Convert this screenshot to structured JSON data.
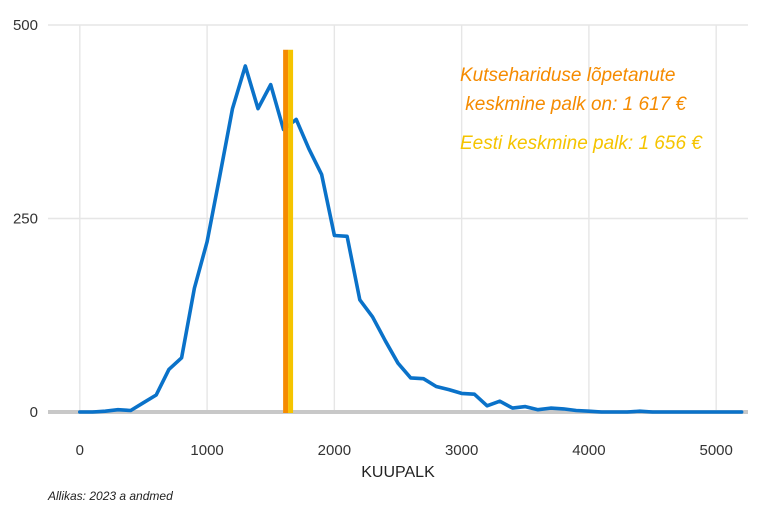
{
  "chart_data": {
    "type": "line",
    "xlabel": "KUUPALK",
    "ylabel": "",
    "xlim": [
      -250,
      5250
    ],
    "ylim": [
      0,
      500
    ],
    "x_ticks": [
      {
        "value": 0,
        "label": "0"
      },
      {
        "value": 1000,
        "label": "1000"
      },
      {
        "value": 2000,
        "label": "2000"
      },
      {
        "value": 3000,
        "label": "3000"
      },
      {
        "value": 4000,
        "label": "4000"
      },
      {
        "value": 5000,
        "label": "5000"
      }
    ],
    "y_ticks": [
      {
        "value": 0,
        "label": "0"
      },
      {
        "value": 250,
        "label": "250"
      },
      {
        "value": 500,
        "label": "500"
      }
    ],
    "grid": true,
    "series": [
      {
        "color": "#0a72c9",
        "x": [
          0,
          100,
          200,
          300,
          400,
          500,
          600,
          700,
          800,
          900,
          1000,
          1100,
          1200,
          1300,
          1400,
          1500,
          1600,
          1700,
          1800,
          1900,
          2000,
          2100,
          2200,
          2300,
          2400,
          2500,
          2600,
          2700,
          2800,
          2900,
          3000,
          3100,
          3200,
          3300,
          3400,
          3500,
          3600,
          3700,
          3800,
          3900,
          4000,
          4100,
          4200,
          4300,
          4400,
          4500,
          4600,
          4700,
          4800,
          4900,
          5000,
          5100,
          5200
        ],
        "y": [
          0,
          0,
          1,
          3,
          2,
          12,
          22,
          55,
          70,
          160,
          220,
          305,
          392,
          447,
          392,
          423,
          365,
          378,
          340,
          307,
          228,
          227,
          145,
          123,
          92,
          63,
          44,
          43,
          33,
          29,
          24,
          23,
          8,
          14,
          5,
          7,
          3,
          5,
          4,
          2,
          1,
          0,
          0,
          0,
          1,
          0,
          0,
          0,
          0,
          0,
          0,
          0,
          0
        ]
      }
    ],
    "reference_lines": [
      {
        "x": 1617,
        "color": "#f58b00"
      },
      {
        "x": 1656,
        "color": "#f5c400"
      }
    ],
    "annotations": [
      {
        "text": "Kutsehariduse lõpetanute",
        "color": "#f58b00"
      },
      {
        "text": " keskmine palk on: 1 617 €",
        "color": "#f58b00"
      },
      {
        "text": "Eesti keskmine palk: 1 656 €",
        "color": "#f5c400"
      }
    ],
    "caption": "Allikas: 2023 a andmed"
  }
}
